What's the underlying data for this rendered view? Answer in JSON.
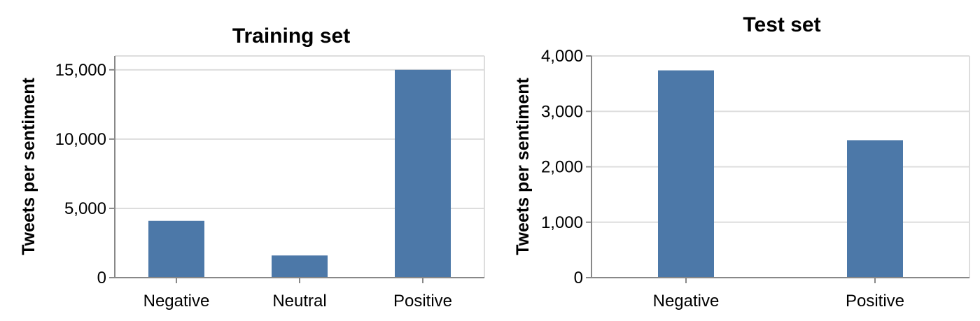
{
  "chart_data": [
    {
      "type": "bar",
      "title": "Training set",
      "xlabel": "",
      "ylabel": "Tweets per sentiment",
      "categories": [
        "Negative",
        "Neutral",
        "Positive"
      ],
      "values": [
        4100,
        1600,
        15000
      ],
      "ylim": [
        0,
        16000
      ],
      "yticks": [
        0,
        5000,
        10000,
        15000
      ],
      "ytick_labels": [
        "0",
        "5,000",
        "10,000",
        "15,000"
      ],
      "grid": true,
      "bar_color": "#4c78a8"
    },
    {
      "type": "bar",
      "title": "Test set",
      "xlabel": "",
      "ylabel": "Tweets per sentiment",
      "categories": [
        "Negative",
        "Positive"
      ],
      "values": [
        3740,
        2480
      ],
      "ylim": [
        0,
        4000
      ],
      "yticks": [
        0,
        1000,
        2000,
        3000,
        4000
      ],
      "ytick_labels": [
        "0",
        "1,000",
        "2,000",
        "3,000",
        "4,000"
      ],
      "grid": true,
      "bar_color": "#4c78a8"
    }
  ]
}
